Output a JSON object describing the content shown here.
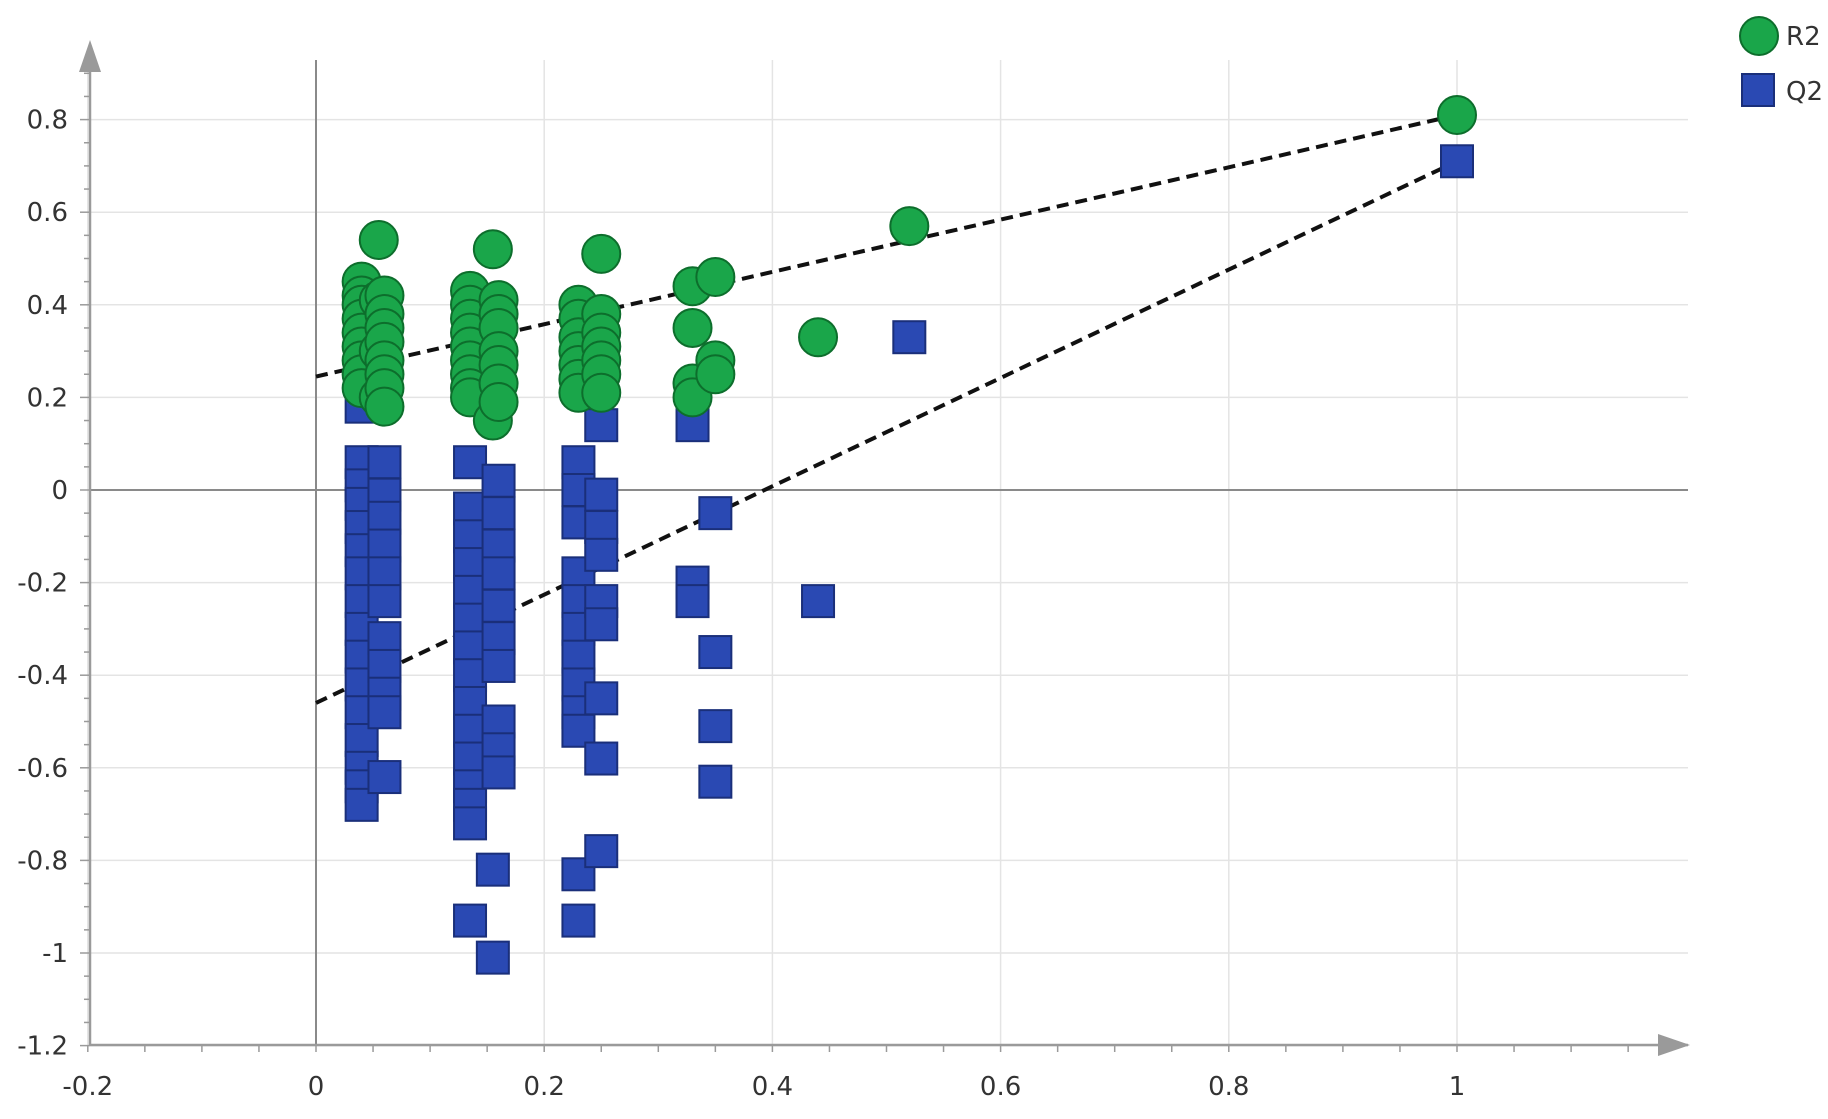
{
  "chart_data": {
    "type": "scatter",
    "title": "",
    "xlabel": "",
    "ylabel": "",
    "xlim": [
      -0.2,
      1.2
    ],
    "ylim": [
      -1.2,
      1.0
    ],
    "x_ticks": [
      -0.2,
      0,
      0.2,
      0.4,
      0.6,
      0.8,
      1
    ],
    "x_tick_labels": [
      "-0.2",
      "0",
      "0.2",
      "0.4",
      "0.6",
      "0.8",
      "1"
    ],
    "y_ticks": [
      -1.2,
      -1,
      -0.8,
      -0.6,
      -0.4,
      -0.2,
      0,
      0.2,
      0.4,
      0.6,
      0.8
    ],
    "y_tick_labels": [
      "-1.2",
      "-1",
      "-0.8",
      "-0.6",
      "-0.4",
      "-0.2",
      "0",
      "0.2",
      "0.4",
      "0.6",
      "0.8"
    ],
    "grid": true,
    "legend_position": "top-right",
    "series": [
      {
        "name": "R2",
        "marker": "circle",
        "color": "#1aa64a",
        "edge_color": "#0d6e2c",
        "points": [
          [
            0.04,
            0.45
          ],
          [
            0.04,
            0.42
          ],
          [
            0.04,
            0.4
          ],
          [
            0.04,
            0.37
          ],
          [
            0.04,
            0.34
          ],
          [
            0.04,
            0.31
          ],
          [
            0.04,
            0.28
          ],
          [
            0.04,
            0.25
          ],
          [
            0.04,
            0.22
          ],
          [
            0.055,
            0.54
          ],
          [
            0.055,
            0.41
          ],
          [
            0.055,
            0.3
          ],
          [
            0.055,
            0.2
          ],
          [
            0.06,
            0.42
          ],
          [
            0.06,
            0.38
          ],
          [
            0.06,
            0.35
          ],
          [
            0.06,
            0.32
          ],
          [
            0.06,
            0.28
          ],
          [
            0.06,
            0.25
          ],
          [
            0.06,
            0.22
          ],
          [
            0.06,
            0.18
          ],
          [
            0.135,
            0.43
          ],
          [
            0.135,
            0.4
          ],
          [
            0.135,
            0.37
          ],
          [
            0.135,
            0.34
          ],
          [
            0.135,
            0.31
          ],
          [
            0.135,
            0.28
          ],
          [
            0.135,
            0.25
          ],
          [
            0.135,
            0.22
          ],
          [
            0.135,
            0.2
          ],
          [
            0.155,
            0.52
          ],
          [
            0.155,
            0.15
          ],
          [
            0.16,
            0.41
          ],
          [
            0.16,
            0.38
          ],
          [
            0.16,
            0.35
          ],
          [
            0.16,
            0.3
          ],
          [
            0.16,
            0.27
          ],
          [
            0.16,
            0.23
          ],
          [
            0.16,
            0.19
          ],
          [
            0.23,
            0.4
          ],
          [
            0.23,
            0.37
          ],
          [
            0.23,
            0.33
          ],
          [
            0.23,
            0.3
          ],
          [
            0.23,
            0.27
          ],
          [
            0.23,
            0.24
          ],
          [
            0.23,
            0.21
          ],
          [
            0.25,
            0.51
          ],
          [
            0.25,
            0.38
          ],
          [
            0.25,
            0.34
          ],
          [
            0.25,
            0.31
          ],
          [
            0.25,
            0.28
          ],
          [
            0.25,
            0.25
          ],
          [
            0.25,
            0.21
          ],
          [
            0.33,
            0.44
          ],
          [
            0.33,
            0.35
          ],
          [
            0.33,
            0.23
          ],
          [
            0.33,
            0.2
          ],
          [
            0.35,
            0.46
          ],
          [
            0.35,
            0.28
          ],
          [
            0.35,
            0.25
          ],
          [
            0.44,
            0.33
          ],
          [
            0.52,
            0.57
          ],
          [
            1.0,
            0.81
          ]
        ]
      },
      {
        "name": "Q2",
        "marker": "square",
        "color": "#2a49b3",
        "edge_color": "#1a2f7a",
        "points": [
          [
            0.04,
            0.18
          ],
          [
            0.04,
            0.06
          ],
          [
            0.04,
            0.01
          ],
          [
            0.04,
            -0.03
          ],
          [
            0.04,
            -0.08
          ],
          [
            0.04,
            -0.13
          ],
          [
            0.04,
            -0.18
          ],
          [
            0.04,
            -0.24
          ],
          [
            0.04,
            -0.3
          ],
          [
            0.04,
            -0.36
          ],
          [
            0.04,
            -0.42
          ],
          [
            0.04,
            -0.48
          ],
          [
            0.04,
            -0.54
          ],
          [
            0.04,
            -0.6
          ],
          [
            0.04,
            -0.64
          ],
          [
            0.04,
            -0.68
          ],
          [
            0.06,
            0.06
          ],
          [
            0.06,
            -0.01
          ],
          [
            0.06,
            -0.06
          ],
          [
            0.06,
            -0.12
          ],
          [
            0.06,
            -0.18
          ],
          [
            0.06,
            -0.24
          ],
          [
            0.06,
            -0.32
          ],
          [
            0.06,
            -0.38
          ],
          [
            0.06,
            -0.44
          ],
          [
            0.06,
            -0.48
          ],
          [
            0.06,
            -0.62
          ],
          [
            0.135,
            0.06
          ],
          [
            0.135,
            -0.04
          ],
          [
            0.135,
            -0.1
          ],
          [
            0.135,
            -0.16
          ],
          [
            0.135,
            -0.22
          ],
          [
            0.135,
            -0.28
          ],
          [
            0.135,
            -0.34
          ],
          [
            0.135,
            -0.4
          ],
          [
            0.135,
            -0.46
          ],
          [
            0.135,
            -0.52
          ],
          [
            0.135,
            -0.58
          ],
          [
            0.135,
            -0.64
          ],
          [
            0.135,
            -0.68
          ],
          [
            0.135,
            -0.72
          ],
          [
            0.135,
            -0.93
          ],
          [
            0.155,
            0.22
          ],
          [
            0.155,
            -0.82
          ],
          [
            0.155,
            -1.01
          ],
          [
            0.16,
            0.02
          ],
          [
            0.16,
            -0.05
          ],
          [
            0.16,
            -0.12
          ],
          [
            0.16,
            -0.18
          ],
          [
            0.16,
            -0.25
          ],
          [
            0.16,
            -0.32
          ],
          [
            0.16,
            -0.38
          ],
          [
            0.16,
            -0.5
          ],
          [
            0.16,
            -0.56
          ],
          [
            0.16,
            -0.61
          ],
          [
            0.23,
            0.06
          ],
          [
            0.23,
            0.0
          ],
          [
            0.23,
            -0.07
          ],
          [
            0.23,
            -0.18
          ],
          [
            0.23,
            -0.24
          ],
          [
            0.23,
            -0.3
          ],
          [
            0.23,
            -0.36
          ],
          [
            0.23,
            -0.42
          ],
          [
            0.23,
            -0.48
          ],
          [
            0.23,
            -0.52
          ],
          [
            0.23,
            -0.83
          ],
          [
            0.23,
            -0.93
          ],
          [
            0.25,
            0.14
          ],
          [
            0.25,
            -0.01
          ],
          [
            0.25,
            -0.08
          ],
          [
            0.25,
            -0.14
          ],
          [
            0.25,
            -0.24
          ],
          [
            0.25,
            -0.29
          ],
          [
            0.25,
            -0.45
          ],
          [
            0.25,
            -0.58
          ],
          [
            0.25,
            -0.78
          ],
          [
            0.33,
            0.14
          ],
          [
            0.33,
            -0.2
          ],
          [
            0.33,
            -0.24
          ],
          [
            0.35,
            -0.05
          ],
          [
            0.35,
            -0.35
          ],
          [
            0.35,
            -0.51
          ],
          [
            0.35,
            -0.63
          ],
          [
            0.44,
            -0.24
          ],
          [
            0.52,
            0.33
          ],
          [
            1.0,
            0.71
          ]
        ]
      }
    ],
    "trend_lines": [
      {
        "series": "R2",
        "from": [
          0,
          0.245
        ],
        "to": [
          1.0,
          0.81
        ],
        "style": "dashed"
      },
      {
        "series": "Q2",
        "from": [
          0,
          -0.46
        ],
        "to": [
          1.0,
          0.71
        ],
        "style": "dashed"
      }
    ]
  }
}
